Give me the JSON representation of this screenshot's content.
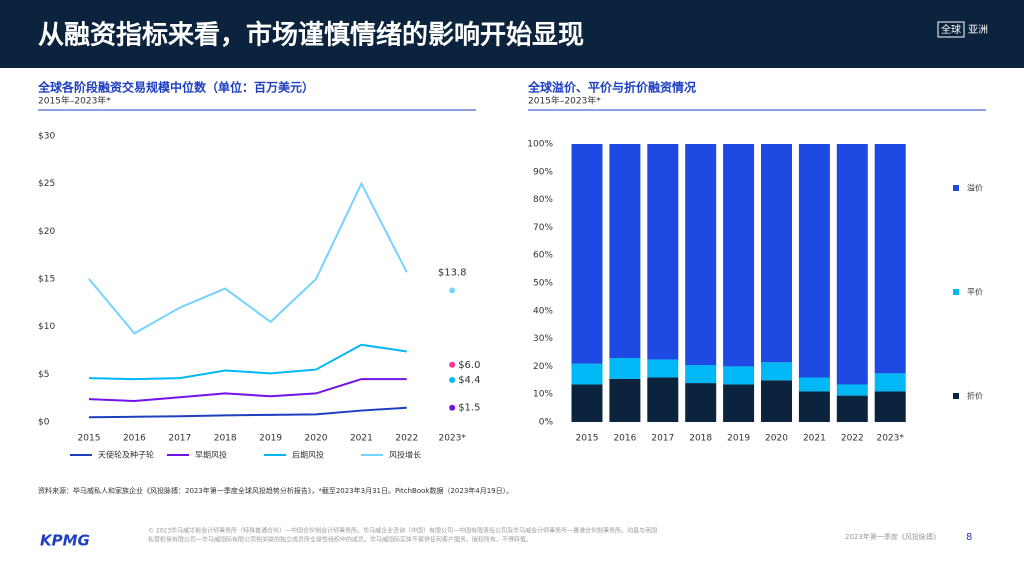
{
  "page": {
    "title": "从融资指标来看，市场谨慎情绪的影响开始显现",
    "badge": [
      "全球",
      "亚洲"
    ],
    "source": "资料来源：毕马威私人和家族企业《风投脉搏：2023年第一季度全球风投趋势分析报告》，*截至2023年3月31日。PitchBook数据（2023年4月19日）。",
    "disclaimer": [
      "© 2023毕马威华振会计师事务所（特殊普通合伙）—中国合伙制会计师事务所，毕马威企业咨询（中国）有限公司—中国有限责任公司及毕马威会计师事务所—香港合伙制事务所，均是与英国",
      "私营担保有限公司—毕马威国际有限公司相关联的独立成员所全球性组织中的成员。毕马威国际实体不提供任何客户服务。版权所有，不得转载。"
    ],
    "report": "2023年第一季度《风投脉搏》",
    "page_number": "8",
    "logo": "KPMG"
  },
  "chart_data": [
    {
      "type": "line",
      "title": "全球各阶段融资交易规模中位数（单位：百万美元）",
      "subtitle": "2015年–2023年*",
      "categories": [
        "2015",
        "2016",
        "2017",
        "2018",
        "2019",
        "2020",
        "2021",
        "2022",
        "2023*"
      ],
      "ylim": [
        0,
        30
      ],
      "yticks": [
        {
          "value": 0,
          "label": "$0"
        },
        {
          "value": 5,
          "label": "$5"
        },
        {
          "value": 10,
          "label": "$10"
        },
        {
          "value": 15,
          "label": "$15"
        },
        {
          "value": 20,
          "label": "$20"
        },
        {
          "value": 25,
          "label": "$25"
        },
        {
          "value": 30,
          "label": "$30"
        }
      ],
      "series": [
        {
          "name": "天使轮及种子轮",
          "color": "#1e3fbf",
          "marker_color": "#7213ea",
          "values": [
            0.5,
            0.55,
            0.6,
            0.7,
            0.75,
            0.8,
            1.2,
            1.5,
            1.5
          ],
          "value_labels": [
            null,
            null,
            null,
            null,
            null,
            null,
            null,
            null,
            "$1.5"
          ]
        },
        {
          "name": "早期风投",
          "color": "#7213ea",
          "marker_color": "#fd349c",
          "values": [
            2.4,
            2.2,
            2.6,
            3.0,
            2.7,
            3.0,
            4.5,
            4.5,
            6.0
          ],
          "value_labels": [
            null,
            null,
            null,
            null,
            null,
            null,
            null,
            null,
            "$6.0"
          ]
        },
        {
          "name": "后期风投",
          "color": "#00b8f5",
          "marker_color": "#00b8f5",
          "values": [
            4.6,
            4.5,
            4.6,
            5.4,
            5.1,
            5.5,
            8.1,
            7.4,
            4.4
          ],
          "value_labels": [
            null,
            null,
            null,
            null,
            null,
            null,
            null,
            null,
            "$4.4"
          ]
        },
        {
          "name": "风投增长",
          "color": "#76d2ff",
          "marker_color": "#76d2ff",
          "values": [
            15,
            9.3,
            12,
            14,
            10.5,
            15,
            25,
            15.7,
            13.8
          ],
          "value_labels": [
            null,
            null,
            null,
            null,
            null,
            null,
            null,
            null,
            "$13.8"
          ]
        }
      ]
    },
    {
      "type": "stacked_bar",
      "title": "全球溢价、平价与折价融资情况",
      "subtitle": "2015年–2023年*",
      "categories": [
        "2015",
        "2016",
        "2017",
        "2018",
        "2019",
        "2020",
        "2021",
        "2022",
        "2023*"
      ],
      "ylim": [
        0,
        100
      ],
      "yticks": [
        {
          "value": 0,
          "label": "0%"
        },
        {
          "value": 10,
          "label": "10%"
        },
        {
          "value": 20,
          "label": "20%"
        },
        {
          "value": 30,
          "label": "30%"
        },
        {
          "value": 40,
          "label": "40%"
        },
        {
          "value": 50,
          "label": "50%"
        },
        {
          "value": 60,
          "label": "60%"
        },
        {
          "value": 70,
          "label": "70%"
        },
        {
          "value": 80,
          "label": "80%"
        },
        {
          "value": 90,
          "label": "90%"
        },
        {
          "value": 100,
          "label": "100%"
        }
      ],
      "series": [
        {
          "name": "折价",
          "color": "#0c233d",
          "values": [
            13.5,
            15.5,
            16,
            14,
            13.5,
            15,
            11,
            9.5,
            11
          ]
        },
        {
          "name": "平价",
          "color": "#00b8f5",
          "values": [
            7.5,
            7.5,
            6.5,
            6.5,
            6.5,
            6.5,
            5,
            4,
            6.5
          ]
        },
        {
          "name": "溢价",
          "color": "#1e49e2",
          "values": [
            79,
            77,
            77.5,
            79.5,
            80,
            78.5,
            84,
            86.5,
            82.5
          ]
        }
      ]
    }
  ]
}
